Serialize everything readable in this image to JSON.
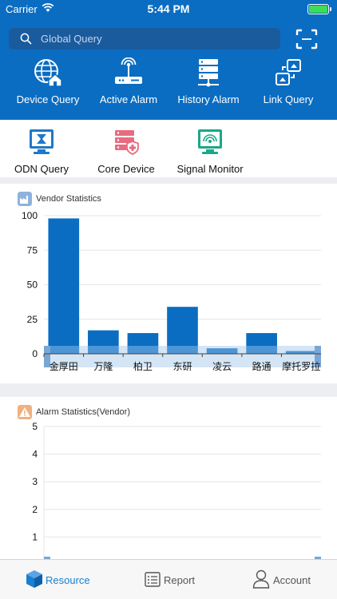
{
  "status_bar": {
    "carrier": "Carrier",
    "time": "5:44 PM"
  },
  "search": {
    "placeholder": "Global Query"
  },
  "top_menu": [
    {
      "label": "Device Query",
      "icon": "globe-home-icon"
    },
    {
      "label": "Active Alarm",
      "icon": "router-signal-icon"
    },
    {
      "label": "History Alarm",
      "icon": "server-rack-icon"
    },
    {
      "label": "Link Query",
      "icon": "link-windows-icon"
    }
  ],
  "second_menu": [
    {
      "label": "ODN Query",
      "icon": "odn-monitor-icon"
    },
    {
      "label": "Core Device",
      "icon": "core-device-shield-icon"
    },
    {
      "label": "Signal Monitor",
      "icon": "signal-monitor-icon"
    }
  ],
  "vendor_stats": {
    "title": "Vendor Statistics",
    "icon_color": "#8fb2dc",
    "bar_color": "#0a6dc2",
    "chart_data": {
      "type": "bar",
      "categories": [
        "金厚田",
        "万隆",
        "柏卫",
        "东研",
        "凌云",
        "路通",
        "摩托罗拉"
      ],
      "values": [
        98,
        17,
        15,
        34,
        4,
        15,
        2
      ],
      "ylim": [
        0,
        100
      ],
      "yticks": [
        0,
        25,
        50,
        75,
        100
      ],
      "grid": true
    }
  },
  "alarm_stats": {
    "title": "Alarm Statistics(Vendor)",
    "icon_color": "#f2b07f",
    "chart_data": {
      "type": "bar",
      "categories": [],
      "values": [],
      "ylim": [
        0,
        5
      ],
      "yticks": [
        1,
        2,
        3,
        4,
        5
      ],
      "grid": true
    }
  },
  "tab_bar": [
    {
      "label": "Resource",
      "icon": "cube-icon",
      "active": true
    },
    {
      "label": "Report",
      "icon": "list-icon",
      "active": false
    },
    {
      "label": "Account",
      "icon": "user-icon",
      "active": false
    }
  ],
  "colors": {
    "brand_blue": "#0a6dc2",
    "active_tab": "#1a7fd0",
    "inactive_tab": "#555555"
  }
}
